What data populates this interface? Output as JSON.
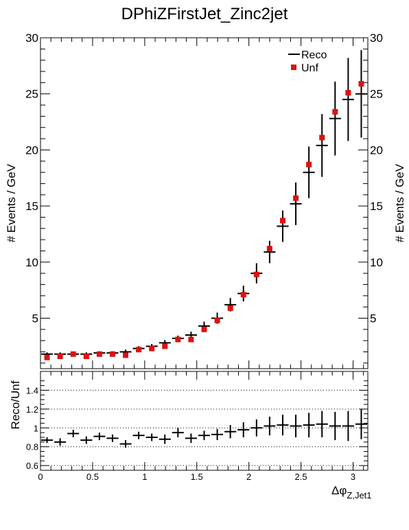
{
  "page": {
    "title": "DPhiZFirstJet_Zinc2jet"
  },
  "colors": {
    "reco": "#000000",
    "unf": "#dd1111",
    "frame": "#000000",
    "grid": "#000000"
  },
  "chart_data": [
    {
      "type": "scatter",
      "title": "DPhiZFirstJet_Zinc2jet",
      "ylabel": "# Events / GeV",
      "xlim": [
        0,
        3.1416
      ],
      "ylim": [
        0.5,
        30
      ],
      "yticks": [
        5,
        10,
        15,
        20,
        25,
        30
      ],
      "ytick_labels": [
        "5",
        "10",
        "15",
        "20",
        "25",
        "30"
      ],
      "legend": {
        "position": "top-right",
        "entries": [
          "Reco",
          "Unf"
        ]
      },
      "bin_edges": [
        0,
        0.1257,
        0.2513,
        0.377,
        0.5027,
        0.6283,
        0.754,
        0.8796,
        1.0053,
        1.131,
        1.2566,
        1.3823,
        1.508,
        1.6336,
        1.7593,
        1.885,
        2.0106,
        2.1363,
        2.2619,
        2.3876,
        2.5133,
        2.6389,
        2.7646,
        2.8903,
        3.0159,
        3.1416
      ],
      "series": [
        {
          "name": "Reco",
          "style": "crosses",
          "x": [
            0.0628,
            0.1885,
            0.3142,
            0.4398,
            0.5655,
            0.6912,
            0.8168,
            0.9425,
            1.0681,
            1.1938,
            1.3195,
            1.4451,
            1.5708,
            1.6965,
            1.8221,
            1.9478,
            2.0735,
            2.1991,
            2.3248,
            2.4504,
            2.5761,
            2.7018,
            2.8274,
            2.9531,
            3.0788
          ],
          "values": [
            1.8,
            1.8,
            1.8,
            1.8,
            1.9,
            1.9,
            2.0,
            2.3,
            2.5,
            2.8,
            3.2,
            3.5,
            4.3,
            5.0,
            6.2,
            7.2,
            9.0,
            10.9,
            13.2,
            15.2,
            18.0,
            20.4,
            22.8,
            24.5,
            25.0
          ],
          "errors": [
            0.15,
            0.15,
            0.15,
            0.15,
            0.15,
            0.15,
            0.2,
            0.2,
            0.2,
            0.25,
            0.25,
            0.3,
            0.4,
            0.5,
            0.6,
            0.7,
            0.9,
            1.0,
            1.4,
            1.9,
            2.3,
            2.8,
            3.3,
            3.7,
            3.9
          ]
        },
        {
          "name": "Unf",
          "style": "squares",
          "x": [
            0.0628,
            0.1885,
            0.3142,
            0.4398,
            0.5655,
            0.6912,
            0.8168,
            0.9425,
            1.0681,
            1.1938,
            1.3195,
            1.4451,
            1.5708,
            1.6965,
            1.8221,
            1.9478,
            2.0735,
            2.1991,
            2.3248,
            2.4504,
            2.5761,
            2.7018,
            2.8274,
            2.9531,
            3.0788
          ],
          "values": [
            1.5,
            1.6,
            1.8,
            1.6,
            1.8,
            1.8,
            1.7,
            2.2,
            2.3,
            2.5,
            3.1,
            3.1,
            4.0,
            4.8,
            5.9,
            7.1,
            8.9,
            11.2,
            13.7,
            15.7,
            18.7,
            21.1,
            23.4,
            25.1,
            25.9
          ]
        }
      ]
    },
    {
      "type": "scatter",
      "xlabel": "Δφ",
      "xlabel_sub": "Z,Jet1",
      "ylabel": "Reco/Unf",
      "xlim": [
        0,
        3.1416
      ],
      "ylim": [
        0.55,
        1.6
      ],
      "xticks": [
        0,
        0.5,
        1,
        1.5,
        2,
        2.5,
        3
      ],
      "xtick_labels": [
        "0",
        "0.5",
        "1",
        "1.5",
        "2",
        "2.5",
        "3"
      ],
      "yticks": [
        0.6,
        0.8,
        1.0,
        1.2,
        1.4
      ],
      "ytick_labels": [
        "0.6",
        "0.8",
        "1",
        "1.2",
        "1.4"
      ],
      "grid": "horizontal dotted",
      "series": [
        {
          "name": "Reco/Unf",
          "style": "crosses",
          "x": [
            0.0628,
            0.1885,
            0.3142,
            0.4398,
            0.5655,
            0.6912,
            0.8168,
            0.9425,
            1.0681,
            1.1938,
            1.3195,
            1.4451,
            1.5708,
            1.6965,
            1.8221,
            1.9478,
            2.0735,
            2.1991,
            2.3248,
            2.4504,
            2.5761,
            2.7018,
            2.8274,
            2.9531,
            3.0788
          ],
          "values": [
            0.87,
            0.85,
            0.94,
            0.87,
            0.91,
            0.89,
            0.83,
            0.92,
            0.9,
            0.88,
            0.95,
            0.89,
            0.92,
            0.93,
            0.96,
            0.98,
            1.0,
            1.02,
            1.03,
            1.02,
            1.03,
            1.04,
            1.02,
            1.02,
            1.04
          ],
          "errors": [
            0.03,
            0.04,
            0.04,
            0.04,
            0.04,
            0.04,
            0.04,
            0.04,
            0.04,
            0.05,
            0.05,
            0.05,
            0.05,
            0.06,
            0.07,
            0.08,
            0.09,
            0.1,
            0.11,
            0.12,
            0.13,
            0.14,
            0.15,
            0.16,
            0.16
          ]
        }
      ]
    }
  ]
}
